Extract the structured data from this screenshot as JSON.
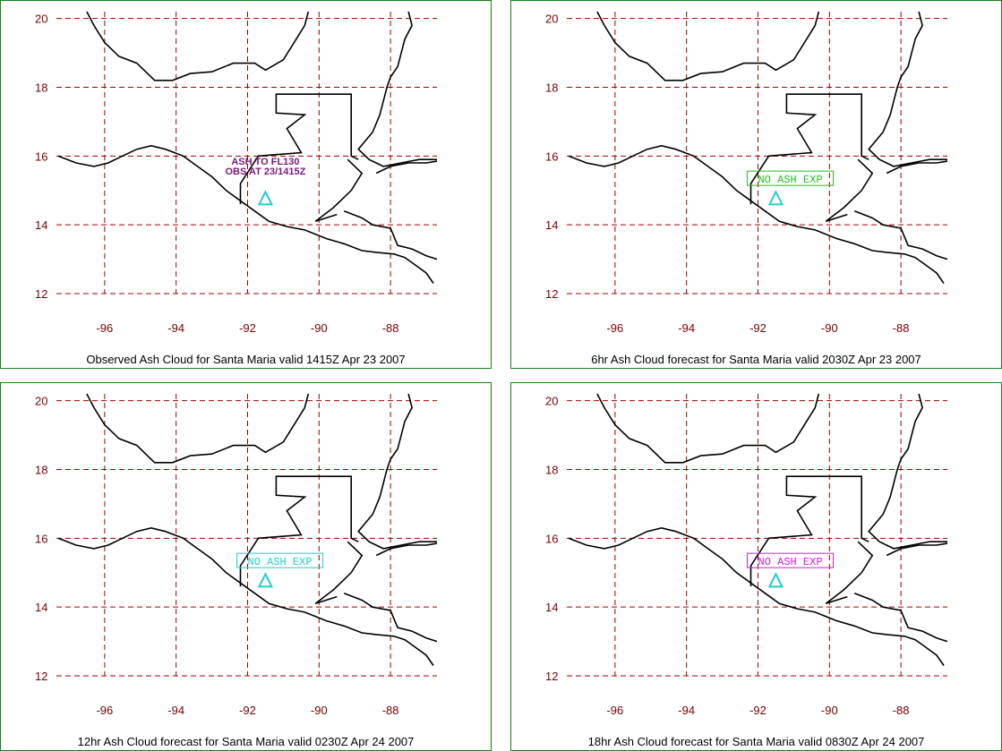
{
  "panels": [
    {
      "caption": "Observed Ash Cloud for Santa  Maria valid 1415Z Apr 23 2007",
      "annotation": {
        "lines": [
          "ASH TO FL130",
          "OBS AT 23/1415Z"
        ],
        "color": "#7b1a7b",
        "boxed": false
      }
    },
    {
      "caption": "6hr Ash Cloud forecast for Santa  Maria valid 2030Z Apr 23 2007",
      "annotation": {
        "lines": [
          "NO ASH EXP"
        ],
        "color": "#22bb22",
        "boxed": true
      }
    },
    {
      "caption": "12hr Ash Cloud forecast for Santa  Maria valid 0230Z Apr 24 2007",
      "annotation": {
        "lines": [
          "NO ASH EXP"
        ],
        "color": "#22cccc",
        "boxed": true
      }
    },
    {
      "caption": "18hr Ash Cloud forecast for Santa  Maria valid 0830Z Apr 24 2007",
      "annotation": {
        "lines": [
          "NO ASH EXP"
        ],
        "color": "#cc22cc",
        "boxed": true
      }
    }
  ],
  "lat_labels": [
    "20",
    "18",
    "16",
    "14",
    "12"
  ],
  "lon_labels": [
    "-96",
    "-94",
    "-92",
    "-90",
    "-88"
  ],
  "colors": {
    "grid": "#a00000",
    "labels": "#7a0000",
    "border": "#1a7f1a",
    "volcano": "#22cccc",
    "coast": "#000000"
  },
  "volcano_icon": "triangle-icon"
}
